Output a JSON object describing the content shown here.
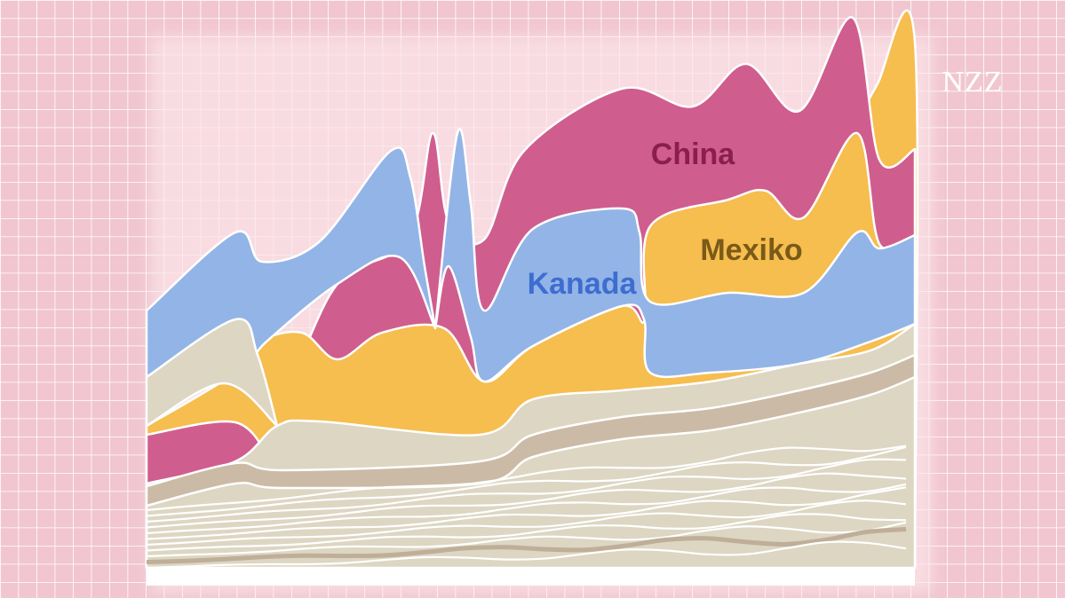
{
  "labels": {
    "china": "China",
    "kanada": "Kanada",
    "mexiko": "Mexiko"
  },
  "logo": "NZZ"
}
